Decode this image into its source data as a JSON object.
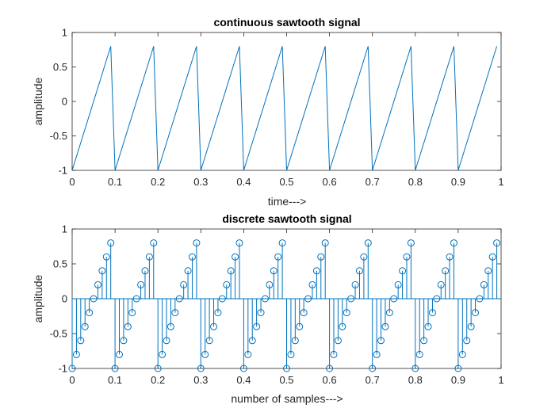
{
  "chart_data": [
    {
      "type": "line",
      "title": "continuous sawtooth signal",
      "xlabel": "time--->",
      "ylabel": "amplitude",
      "xlim": [
        0,
        1
      ],
      "ylim": [
        -1,
        1
      ],
      "xticks": [
        "0",
        "0.1",
        "0.2",
        "0.3",
        "0.4",
        "0.5",
        "0.6",
        "0.7",
        "0.8",
        "0.9",
        "1"
      ],
      "yticks": [
        "-1",
        "-0.5",
        "0",
        "0.5",
        "1"
      ],
      "grid": false,
      "color": "#0072BD",
      "x": [
        0,
        0.09,
        0.1,
        0.19,
        0.2,
        0.29,
        0.3,
        0.39,
        0.4,
        0.49,
        0.5,
        0.59,
        0.6,
        0.69,
        0.7,
        0.79,
        0.8,
        0.89,
        0.9,
        0.99
      ],
      "y": [
        -1,
        0.8,
        -1,
        0.8,
        -1,
        0.8,
        -1,
        0.8,
        -1,
        0.8,
        -1,
        0.8,
        -1,
        0.8,
        -1,
        0.8,
        -1,
        0.8,
        -1,
        0.8
      ]
    },
    {
      "type": "scatter",
      "style": "stem",
      "title": "discrete sawtooth signal",
      "xlabel": "number of samples--->",
      "ylabel": "amplitude",
      "xlim": [
        0,
        1
      ],
      "ylim": [
        -1,
        1
      ],
      "xticks": [
        "0",
        "0.1",
        "0.2",
        "0.3",
        "0.4",
        "0.5",
        "0.6",
        "0.7",
        "0.8",
        "0.9",
        "1"
      ],
      "yticks": [
        "-1",
        "-0.5",
        "0",
        "0.5",
        "1"
      ],
      "grid": false,
      "color": "#0072BD",
      "x": [
        0,
        0.01,
        0.02,
        0.03,
        0.04,
        0.05,
        0.06,
        0.07,
        0.08,
        0.09,
        0.1,
        0.11,
        0.12,
        0.13,
        0.14,
        0.15,
        0.16,
        0.17,
        0.18,
        0.19,
        0.2,
        0.21,
        0.22,
        0.23,
        0.24,
        0.25,
        0.26,
        0.27,
        0.28,
        0.29,
        0.3,
        0.31,
        0.32,
        0.33,
        0.34,
        0.35,
        0.36,
        0.37,
        0.38,
        0.39,
        0.4,
        0.41,
        0.42,
        0.43,
        0.44,
        0.45,
        0.46,
        0.47,
        0.48,
        0.49,
        0.5,
        0.51,
        0.52,
        0.53,
        0.54,
        0.55,
        0.56,
        0.57,
        0.58,
        0.59,
        0.6,
        0.61,
        0.62,
        0.63,
        0.64,
        0.65,
        0.66,
        0.67,
        0.68,
        0.69,
        0.7,
        0.71,
        0.72,
        0.73,
        0.74,
        0.75,
        0.76,
        0.77,
        0.78,
        0.79,
        0.8,
        0.81,
        0.82,
        0.83,
        0.84,
        0.85,
        0.86,
        0.87,
        0.88,
        0.89,
        0.9,
        0.91,
        0.92,
        0.93,
        0.94,
        0.95,
        0.96,
        0.97,
        0.98,
        0.99
      ],
      "y": [
        -1,
        -0.8,
        -0.6,
        -0.4,
        -0.2,
        0,
        0.2,
        0.4,
        0.6,
        0.8,
        -1,
        -0.8,
        -0.6,
        -0.4,
        -0.2,
        0,
        0.2,
        0.4,
        0.6,
        0.8,
        -1,
        -0.8,
        -0.6,
        -0.4,
        -0.2,
        0,
        0.2,
        0.4,
        0.6,
        0.8,
        -1,
        -0.8,
        -0.6,
        -0.4,
        -0.2,
        0,
        0.2,
        0.4,
        0.6,
        0.8,
        -1,
        -0.8,
        -0.6,
        -0.4,
        -0.2,
        0,
        0.2,
        0.4,
        0.6,
        0.8,
        -1,
        -0.8,
        -0.6,
        -0.4,
        -0.2,
        0,
        0.2,
        0.4,
        0.6,
        0.8,
        -1,
        -0.8,
        -0.6,
        -0.4,
        -0.2,
        0,
        0.2,
        0.4,
        0.6,
        0.8,
        -1,
        -0.8,
        -0.6,
        -0.4,
        -0.2,
        0,
        0.2,
        0.4,
        0.6,
        0.8,
        -1,
        -0.8,
        -0.6,
        -0.4,
        -0.2,
        0,
        0.2,
        0.4,
        0.6,
        0.8,
        -1,
        -0.8,
        -0.6,
        -0.4,
        -0.2,
        0,
        0.2,
        0.4,
        0.6,
        0.8
      ]
    }
  ]
}
